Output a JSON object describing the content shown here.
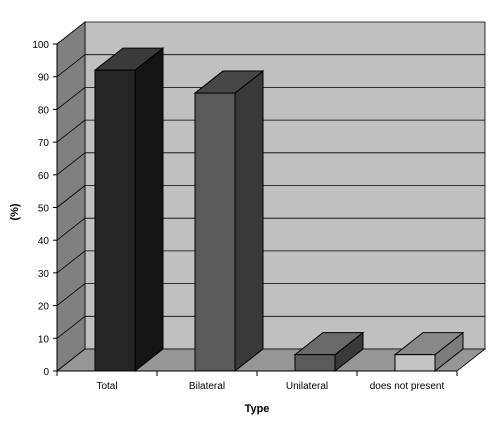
{
  "chart_data": {
    "type": "bar",
    "categories": [
      "Total",
      "Bilateral",
      "Unilateral",
      "does not present"
    ],
    "values": [
      92,
      85,
      5,
      5
    ],
    "xlabel": "Type",
    "ylabel": "(%)",
    "ylim": [
      0,
      100
    ],
    "yticks": [
      "0",
      "10",
      "20",
      "30",
      "40",
      "50",
      "60",
      "70",
      "80",
      "90",
      "100"
    ],
    "grid": true,
    "legend": "none",
    "colors": {
      "wall": "#c0c0c0",
      "side_wall": "#808080",
      "floor": "#969696",
      "bars": [
        {
          "front": "#262626",
          "side": "#141414",
          "top": "#3a3a3a"
        },
        {
          "front": "#5a5a5a",
          "side": "#393939",
          "top": "#474747"
        },
        {
          "front": "#5a5a5a",
          "side": "#393939",
          "top": "#6a6a6a"
        },
        {
          "front": "#c4c4c4",
          "side": "#7c7c7c",
          "top": "#888888"
        }
      ]
    }
  }
}
